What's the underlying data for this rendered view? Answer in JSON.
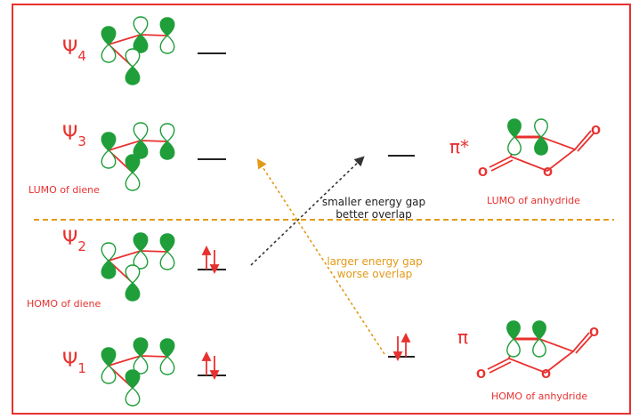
{
  "colors": {
    "frame": "#e8312f",
    "label": "#e8312f",
    "lobe": "#1f9e3a",
    "bond": "#e8312f",
    "divider": "#e39a18",
    "gray_arrow": "#333333",
    "orange_arrow": "#e39a18",
    "level": "#222222",
    "electron": "#e8312f"
  },
  "diene": {
    "orbitals": [
      {
        "symbol": "Ψ",
        "subscript": "4",
        "caption": ""
      },
      {
        "symbol": "Ψ",
        "subscript": "3",
        "caption": "LUMO of diene"
      },
      {
        "symbol": "Ψ",
        "subscript": "2",
        "caption": "HOMO of diene"
      },
      {
        "symbol": "Ψ",
        "subscript": "1",
        "caption": ""
      }
    ]
  },
  "anhydride": {
    "orbitals": [
      {
        "symbol": "π*",
        "caption": "LUMO of anhydride",
        "atom_label": "O"
      },
      {
        "symbol": "π",
        "caption": "HOMO of anhydride",
        "atom_label": "O"
      }
    ]
  },
  "interactions": {
    "small_gap": {
      "line1": "smaller energy gap",
      "line2": "better overlap"
    },
    "large_gap": {
      "line1": "larger energy gap",
      "line2": "worse overlap"
    }
  }
}
